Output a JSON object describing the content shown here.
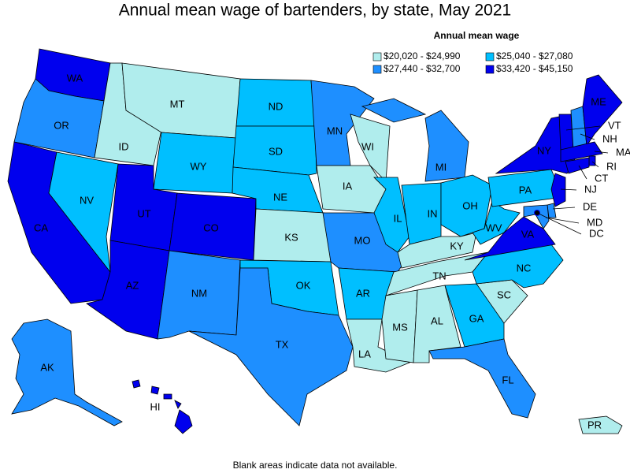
{
  "title": "Annual mean wage of bartenders, by state, May 2021",
  "legend": {
    "title": "Annual mean wage",
    "classes": [
      {
        "label": "$20,020 - $24,990",
        "color": "#b0eded"
      },
      {
        "label": "$25,040 - $27,080",
        "color": "#00bfff"
      },
      {
        "label": "$27,440 - $32,700",
        "color": "#1e8fff"
      },
      {
        "label": "$33,420 - $45,150",
        "color": "#0000ee"
      }
    ]
  },
  "states": [
    {
      "label": "WA",
      "class": 3
    },
    {
      "label": "OR",
      "class": 2
    },
    {
      "label": "CA",
      "class": 3
    },
    {
      "label": "NV",
      "class": 1
    },
    {
      "label": "ID",
      "class": 0
    },
    {
      "label": "MT",
      "class": 0
    },
    {
      "label": "WY",
      "class": 1
    },
    {
      "label": "UT",
      "class": 3
    },
    {
      "label": "CO",
      "class": 3
    },
    {
      "label": "AZ",
      "class": 3
    },
    {
      "label": "NM",
      "class": 2
    },
    {
      "label": "ND",
      "class": 1
    },
    {
      "label": "SD",
      "class": 1
    },
    {
      "label": "NE",
      "class": 1
    },
    {
      "label": "KS",
      "class": 0
    },
    {
      "label": "OK",
      "class": 1
    },
    {
      "label": "TX",
      "class": 2
    },
    {
      "label": "MN",
      "class": 2
    },
    {
      "label": "IA",
      "class": 0
    },
    {
      "label": "MO",
      "class": 2
    },
    {
      "label": "AR",
      "class": 1
    },
    {
      "label": "LA",
      "class": 0
    },
    {
      "label": "WI",
      "class": 0
    },
    {
      "label": "IL",
      "class": 1
    },
    {
      "label": "MI",
      "class": 2
    },
    {
      "label": "IN",
      "class": 1
    },
    {
      "label": "OH",
      "class": 1
    },
    {
      "label": "KY",
      "class": 0
    },
    {
      "label": "TN",
      "class": 0
    },
    {
      "label": "MS",
      "class": 0
    },
    {
      "label": "AL",
      "class": 0
    },
    {
      "label": "GA",
      "class": 1
    },
    {
      "label": "FL",
      "class": 2
    },
    {
      "label": "SC",
      "class": 0
    },
    {
      "label": "NC",
      "class": 1
    },
    {
      "label": "VA",
      "class": 3
    },
    {
      "label": "WV",
      "class": 1
    },
    {
      "label": "PA",
      "class": 1
    },
    {
      "label": "NY",
      "class": 3
    },
    {
      "label": "VT",
      "class": 3
    },
    {
      "label": "NH",
      "class": 2
    },
    {
      "label": "ME",
      "class": 3
    },
    {
      "label": "MA",
      "class": 3
    },
    {
      "label": "RI",
      "class": 3
    },
    {
      "label": "CT",
      "class": 3
    },
    {
      "label": "NJ",
      "class": 3
    },
    {
      "label": "DE",
      "class": 2
    },
    {
      "label": "MD",
      "class": 2
    },
    {
      "label": "DC",
      "class": 3
    },
    {
      "label": "AK",
      "class": 2
    },
    {
      "label": "HI",
      "class": 3
    },
    {
      "label": "PR",
      "class": 0
    }
  ],
  "footnote": "Blank areas indicate data not available."
}
